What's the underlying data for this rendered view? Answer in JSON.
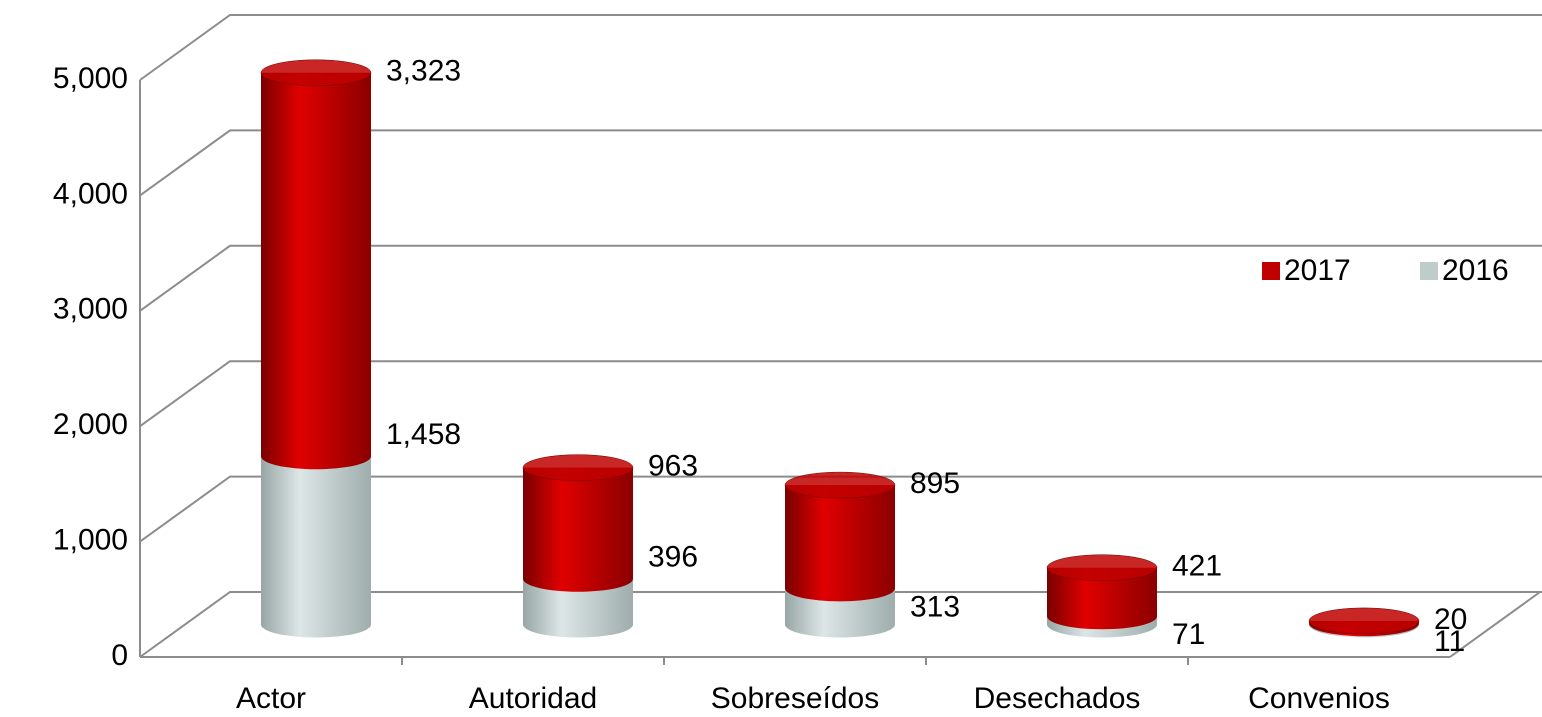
{
  "chart_data": {
    "type": "bar3d-stacked",
    "categories": [
      "Actor",
      "Autoridad",
      "Sobreseídos",
      "Desechados",
      "Convenios"
    ],
    "series": [
      {
        "name": "2016",
        "color": "#bfcccc",
        "values": [
          1458,
          396,
          313,
          71,
          11
        ],
        "value_labels": [
          "1,458",
          "396",
          "313",
          "71",
          "11"
        ]
      },
      {
        "name": "2017",
        "color": "#c00000",
        "values": [
          3323,
          963,
          895,
          421,
          20
        ],
        "value_labels": [
          "3,323",
          "963",
          "895",
          "421",
          "20"
        ]
      }
    ],
    "ylim": [
      0,
      5000
    ],
    "yticks": [
      0,
      {
        "value": 1000,
        "label": "1,000"
      },
      {
        "value": 2000,
        "label": "2,000"
      },
      {
        "value": 3000,
        "label": "3,000"
      },
      {
        "value": 4000,
        "label": "4,000"
      },
      {
        "value": 5000,
        "label": "5,000"
      }
    ],
    "grid": true,
    "legend": "right"
  }
}
